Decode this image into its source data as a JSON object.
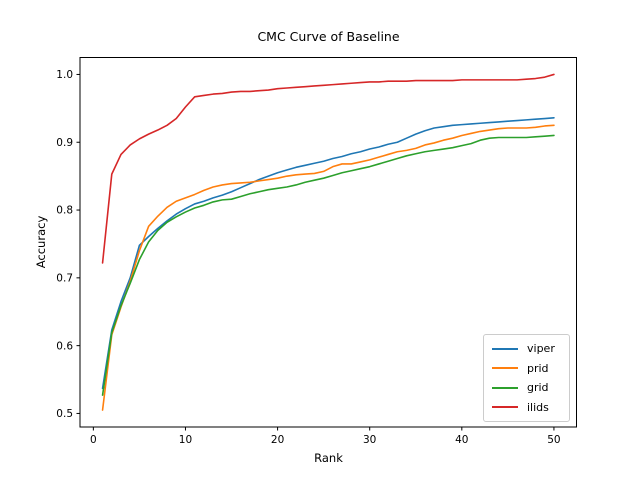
{
  "chart_data": {
    "type": "line",
    "title": "CMC Curve of Baseline",
    "xlabel": "Rank",
    "ylabel": "Accuracy",
    "x": [
      1,
      2,
      3,
      4,
      5,
      6,
      7,
      8,
      9,
      10,
      11,
      12,
      13,
      14,
      15,
      16,
      17,
      18,
      19,
      20,
      21,
      22,
      23,
      24,
      25,
      26,
      27,
      28,
      29,
      30,
      31,
      32,
      33,
      34,
      35,
      36,
      37,
      38,
      39,
      40,
      41,
      42,
      43,
      44,
      45,
      46,
      47,
      48,
      49,
      50
    ],
    "series": [
      {
        "name": "viper",
        "color": "#1f77b4",
        "values": [
          0.537,
          0.623,
          0.665,
          0.7,
          0.748,
          0.761,
          0.773,
          0.784,
          0.794,
          0.802,
          0.809,
          0.813,
          0.818,
          0.822,
          0.827,
          0.833,
          0.839,
          0.845,
          0.85,
          0.855,
          0.859,
          0.863,
          0.866,
          0.869,
          0.872,
          0.876,
          0.879,
          0.883,
          0.886,
          0.89,
          0.893,
          0.897,
          0.9,
          0.906,
          0.912,
          0.917,
          0.921,
          0.923,
          0.925,
          0.926,
          0.927,
          0.928,
          0.929,
          0.93,
          0.931,
          0.932,
          0.933,
          0.934,
          0.935,
          0.936
        ]
      },
      {
        "name": "prid",
        "color": "#ff7f0e",
        "values": [
          0.505,
          0.616,
          0.657,
          0.695,
          0.74,
          0.776,
          0.791,
          0.804,
          0.813,
          0.818,
          0.823,
          0.829,
          0.834,
          0.837,
          0.839,
          0.84,
          0.841,
          0.843,
          0.845,
          0.847,
          0.85,
          0.852,
          0.853,
          0.854,
          0.857,
          0.864,
          0.868,
          0.868,
          0.871,
          0.874,
          0.878,
          0.882,
          0.886,
          0.888,
          0.891,
          0.896,
          0.899,
          0.903,
          0.906,
          0.91,
          0.913,
          0.916,
          0.918,
          0.92,
          0.921,
          0.921,
          0.921,
          0.922,
          0.924,
          0.925
        ]
      },
      {
        "name": "grid",
        "color": "#2ca02c",
        "values": [
          0.527,
          0.619,
          0.659,
          0.692,
          0.727,
          0.753,
          0.77,
          0.782,
          0.79,
          0.797,
          0.803,
          0.807,
          0.812,
          0.815,
          0.816,
          0.82,
          0.824,
          0.827,
          0.83,
          0.832,
          0.834,
          0.837,
          0.841,
          0.844,
          0.847,
          0.851,
          0.855,
          0.858,
          0.861,
          0.864,
          0.868,
          0.872,
          0.876,
          0.88,
          0.883,
          0.886,
          0.888,
          0.89,
          0.892,
          0.895,
          0.898,
          0.903,
          0.906,
          0.907,
          0.907,
          0.907,
          0.907,
          0.908,
          0.909,
          0.91
        ]
      },
      {
        "name": "ilids",
        "color": "#d62728",
        "values": [
          0.722,
          0.853,
          0.882,
          0.896,
          0.905,
          0.912,
          0.918,
          0.925,
          0.935,
          0.952,
          0.967,
          0.969,
          0.971,
          0.972,
          0.974,
          0.975,
          0.975,
          0.976,
          0.977,
          0.979,
          0.98,
          0.981,
          0.982,
          0.983,
          0.984,
          0.985,
          0.986,
          0.987,
          0.988,
          0.989,
          0.989,
          0.99,
          0.99,
          0.99,
          0.991,
          0.991,
          0.991,
          0.991,
          0.991,
          0.992,
          0.992,
          0.992,
          0.992,
          0.992,
          0.992,
          0.992,
          0.993,
          0.994,
          0.996,
          1.0
        ]
      }
    ],
    "xlim": [
      -1.45,
      52.45
    ],
    "ylim": [
      0.48,
      1.025
    ],
    "xticks": [
      0,
      10,
      20,
      30,
      40,
      50
    ],
    "xtick_labels": [
      "0",
      "10",
      "20",
      "30",
      "40",
      "50"
    ],
    "yticks": [
      0.5,
      0.6,
      0.7,
      0.8,
      0.9,
      1.0
    ],
    "ytick_labels": [
      "0.5",
      "0.6",
      "0.7",
      "0.8",
      "0.9",
      "1.0"
    ],
    "legend_position": "lower right",
    "legend_entries": [
      "viper",
      "prid",
      "grid",
      "ilids"
    ],
    "grid": false,
    "spine_color": "#000000",
    "text_color": "#000000",
    "background_color": "#ffffff"
  }
}
